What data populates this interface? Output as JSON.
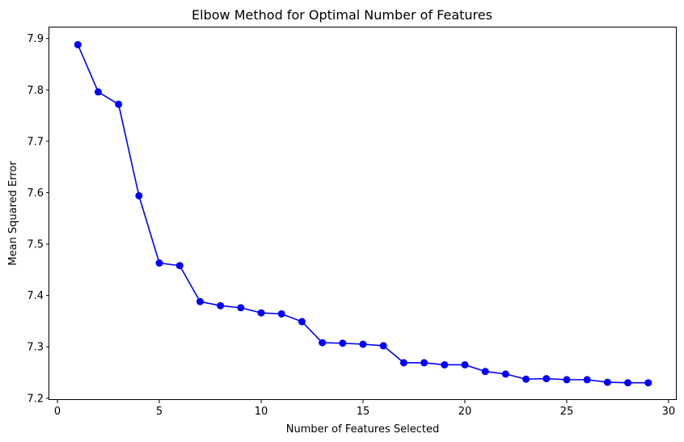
{
  "chart_data": {
    "type": "line",
    "title": "Elbow Method for Optimal Number of Features",
    "xlabel": "Number of Features Selected",
    "ylabel": "Mean Squared Error",
    "xlim": [
      -0.4,
      30.4
    ],
    "ylim": [
      7.1965,
      7.9215
    ],
    "xticks": [
      0,
      5,
      10,
      15,
      20,
      25,
      30
    ],
    "yticks": [
      7.2,
      7.3,
      7.4,
      7.5,
      7.6,
      7.7,
      7.8,
      7.9
    ],
    "grid": false,
    "marker": "circle",
    "series": [
      {
        "color": "#0000ff",
        "x": [
          1,
          2,
          3,
          4,
          5,
          6,
          7,
          8,
          9,
          10,
          11,
          12,
          13,
          14,
          15,
          16,
          17,
          18,
          19,
          20,
          21,
          22,
          23,
          24,
          25,
          26,
          27,
          28,
          29
        ],
        "values": [
          7.888,
          7.796,
          7.772,
          7.594,
          7.463,
          7.458,
          7.388,
          7.38,
          7.376,
          7.366,
          7.364,
          7.349,
          7.308,
          7.307,
          7.305,
          7.302,
          7.269,
          7.269,
          7.265,
          7.265,
          7.252,
          7.247,
          7.237,
          7.238,
          7.236,
          7.236,
          7.231,
          7.23,
          7.23
        ]
      }
    ]
  }
}
